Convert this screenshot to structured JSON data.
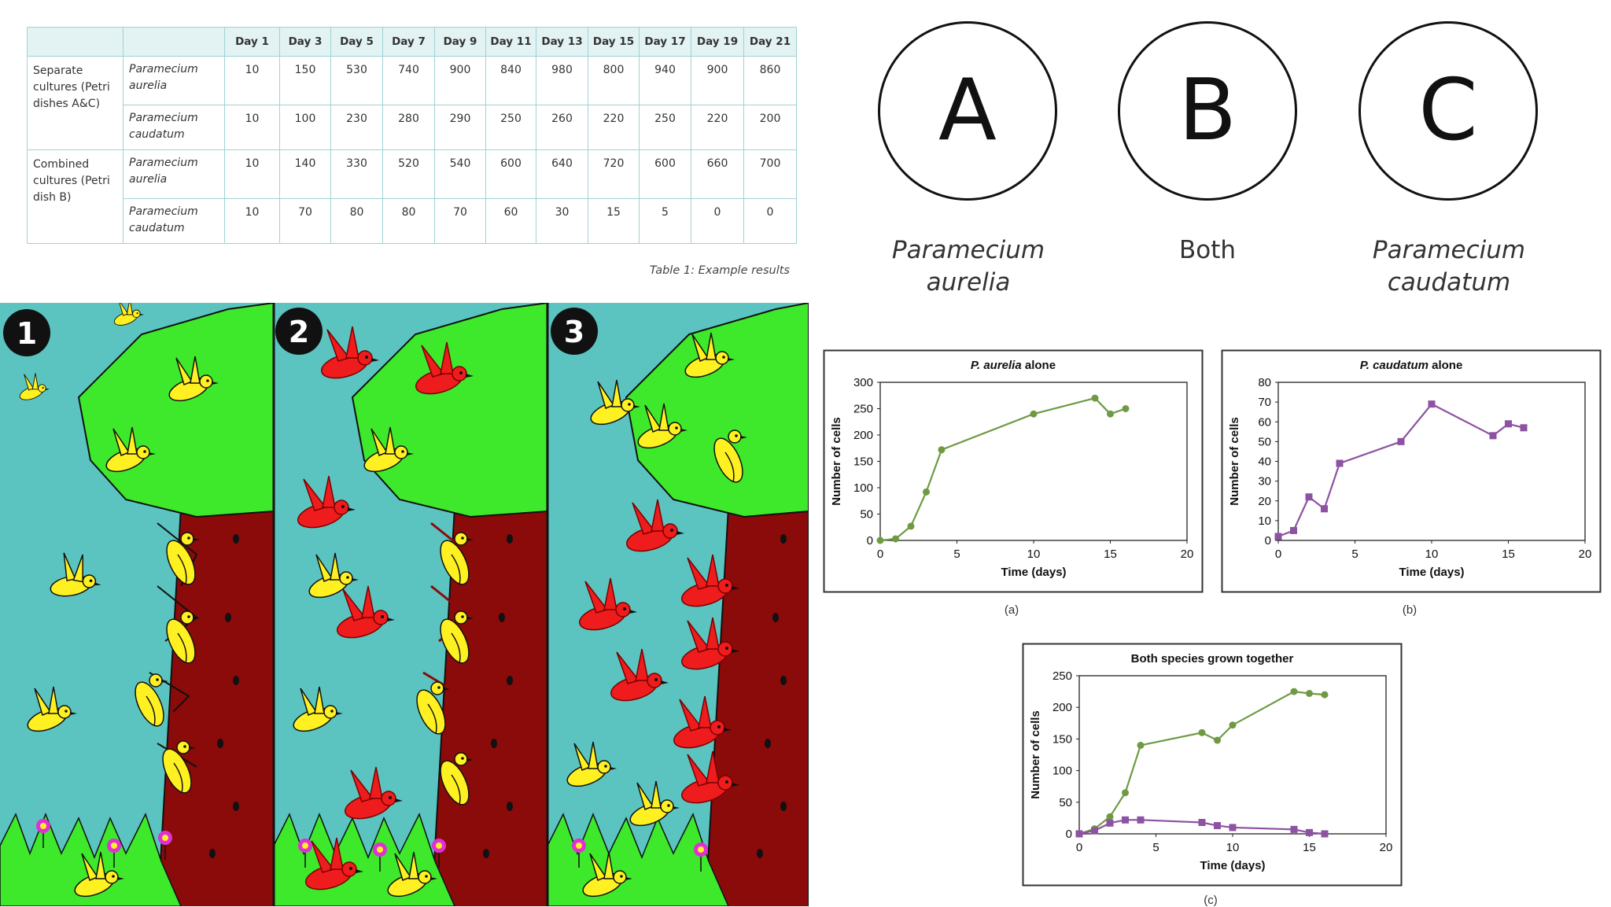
{
  "table": {
    "headers": [
      "",
      "",
      "Day 1",
      "Day 3",
      "Day 5",
      "Day 7",
      "Day 9",
      "Day 11",
      "Day 13",
      "Day 15",
      "Day 17",
      "Day 19",
      "Day 21"
    ],
    "groups": [
      {
        "label": "Separate cultures (Petri dishes A&C)",
        "rows": [
          {
            "species": "Paramecium aurelia",
            "values": [
              "10",
              "150",
              "530",
              "740",
              "900",
              "840",
              "980",
              "800",
              "940",
              "900",
              "860"
            ]
          },
          {
            "species": "Paramecium caudatum",
            "values": [
              "10",
              "100",
              "230",
              "280",
              "290",
              "250",
              "260",
              "220",
              "250",
              "220",
              "200"
            ]
          }
        ]
      },
      {
        "label": "Combined cultures (Petri dish B)",
        "rows": [
          {
            "species": "Paramecium aurelia",
            "values": [
              "10",
              "140",
              "330",
              "520",
              "540",
              "600",
              "640",
              "720",
              "600",
              "660",
              "700"
            ]
          },
          {
            "species": "Paramecium caudatum",
            "values": [
              "10",
              "70",
              "80",
              "80",
              "70",
              "60",
              "30",
              "15",
              "5",
              "0",
              "0"
            ]
          }
        ]
      }
    ],
    "caption": "Table 1: Example results"
  },
  "dishes": [
    {
      "letter": "A",
      "label": "Paramecium aurelia"
    },
    {
      "letter": "B",
      "label": "Both"
    },
    {
      "letter": "C",
      "label": "Paramecium caudatum"
    }
  ],
  "illustration": {
    "panels": [
      "1",
      "2",
      "3"
    ],
    "colors": {
      "sky": "#5bc4c0",
      "leaves": "#3ee82b",
      "trunk": "#8b0a0a",
      "grass": "#3ee82b",
      "yellow_bird": "#fff021",
      "red_bird": "#ee1c1c",
      "flower": "#e02fd6"
    }
  },
  "colors": {
    "aurelia": "#6f9a43",
    "caudatum": "#8d52a1",
    "table_border": "#9fd3d3",
    "table_header_bg": "#e3f2f3"
  },
  "chart_data": [
    {
      "type": "line",
      "title_italic": "P. aurelia",
      "title_rest": " alone",
      "caption": "(a)",
      "xlabel": "Time (days)",
      "ylabel": "Number of cells",
      "xlim": [
        0,
        20
      ],
      "ylim": [
        0,
        300
      ],
      "xticks": [
        0,
        5,
        10,
        15,
        20
      ],
      "yticks": [
        0,
        50,
        100,
        150,
        200,
        250,
        300
      ],
      "series": [
        {
          "color": "#6f9a43",
          "marker": "circle",
          "x": [
            0,
            1,
            2,
            3,
            4,
            10,
            14,
            15,
            16
          ],
          "y": [
            0,
            3,
            27,
            92,
            172,
            240,
            270,
            240,
            250
          ]
        }
      ]
    },
    {
      "type": "line",
      "title_italic": "P. caudatum",
      "title_rest": " alone",
      "caption": "(b)",
      "xlabel": "Time (days)",
      "ylabel": "Number of cells",
      "xlim": [
        0,
        20
      ],
      "ylim": [
        0,
        80
      ],
      "xticks": [
        0,
        5,
        10,
        15,
        20
      ],
      "yticks": [
        0,
        10,
        20,
        30,
        40,
        50,
        60,
        70,
        80
      ],
      "series": [
        {
          "color": "#8d52a1",
          "marker": "square",
          "x": [
            0,
            1,
            2,
            3,
            4,
            8,
            10,
            14,
            15,
            16
          ],
          "y": [
            2,
            5,
            22,
            16,
            39,
            50,
            69,
            53,
            59,
            57
          ]
        }
      ]
    },
    {
      "type": "line",
      "title_italic": "",
      "title_rest": "Both species grown together",
      "caption": "(c)",
      "xlabel": "Time (days)",
      "ylabel": "Number of cells",
      "xlim": [
        0,
        20
      ],
      "ylim": [
        0,
        250
      ],
      "xticks": [
        0,
        5,
        10,
        15,
        20
      ],
      "yticks": [
        0,
        50,
        100,
        150,
        200,
        250
      ],
      "series": [
        {
          "color": "#6f9a43",
          "marker": "circle",
          "x": [
            0,
            1,
            2,
            3,
            4,
            8,
            9,
            10,
            14,
            15,
            16
          ],
          "y": [
            0,
            8,
            27,
            65,
            140,
            160,
            148,
            172,
            225,
            222,
            220
          ]
        },
        {
          "color": "#8d52a1",
          "marker": "square",
          "x": [
            0,
            1,
            2,
            3,
            4,
            8,
            9,
            10,
            14,
            15,
            16
          ],
          "y": [
            0,
            5,
            17,
            22,
            22,
            18,
            13,
            10,
            7,
            2,
            0
          ]
        }
      ]
    }
  ]
}
